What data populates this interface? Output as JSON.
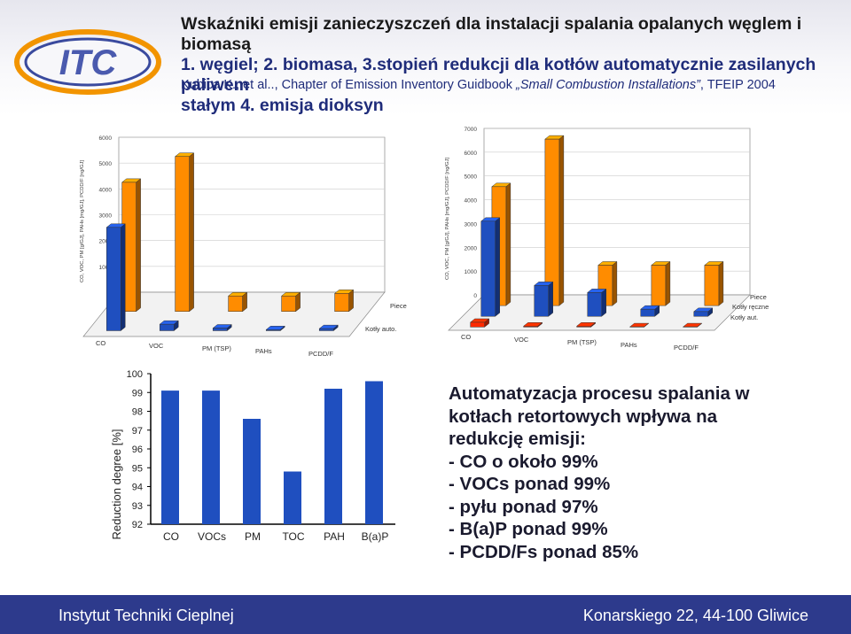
{
  "header": {
    "title_line1": "Wskaźniki emisji zanieczyszczeń dla instalacji spalania opalanych węglem i biomasą",
    "title_line2": "1. węgiel; 2. biomasa, 3.stopień redukcji dla kotłów automatycznie zasilanych paliwem",
    "title_line3": "stałym 4. emisja dioksyn",
    "source_prefix": "Kubica K., et al.., Chapter of Emission Inventory Guidbook ",
    "source_italic": "„Small Combustion Installations”",
    "source_suffix": ", TFEIP 2004"
  },
  "colors": {
    "accent": "#2d3a8c",
    "blue_bar": "#1f4fbf",
    "orange_bar": "#ff8c00",
    "red_bar": "#ff2a00"
  },
  "chart_data": [
    {
      "type": "bar",
      "title": "",
      "ylabel": "CO, VOC, PM [g/GJ], PAHs [mg/GJ], PCDD/F [ng/GJ]",
      "ylim": [
        0,
        6000
      ],
      "yticks": [
        "0",
        "1000",
        "2000",
        "3000",
        "4000",
        "5000",
        "6000"
      ],
      "categories": [
        "CO",
        "VOC",
        "PM (TSP)",
        "PAHs",
        "PCDD/F"
      ],
      "series": [
        {
          "name": "Piece",
          "values": [
            5000,
            6000,
            600,
            600,
            700
          ]
        },
        {
          "name": "Kotły auto.",
          "values": [
            4000,
            250,
            100,
            40,
            80
          ]
        }
      ]
    },
    {
      "type": "bar",
      "title": "",
      "ylabel": "CO, VOC, PM [g/GJ], PAHs [mg/GJ], PCDD/F [ng/GJ]",
      "ylim": [
        0,
        7000
      ],
      "yticks": [
        "0",
        "1000",
        "2000",
        "3000",
        "4000",
        "5000",
        "6000",
        "7000"
      ],
      "categories": [
        "CO",
        "VOC",
        "PM (TSP)",
        "PAHs",
        "PCDD/F"
      ],
      "series": [
        {
          "name": "Piece",
          "values": [
            5000,
            7000,
            1700,
            1700,
            1700
          ]
        },
        {
          "name": "Kotły ręczne",
          "values": [
            4000,
            1300,
            1000,
            300,
            200
          ]
        },
        {
          "name": "Kotły aut.",
          "values": [
            200,
            40,
            40,
            10,
            10
          ]
        }
      ]
    },
    {
      "type": "bar",
      "title": "",
      "ylabel": "Reduction degree [%]",
      "ylim": [
        92,
        100
      ],
      "yticks": [
        "92",
        "93",
        "94",
        "95",
        "96",
        "97",
        "98",
        "99",
        "100"
      ],
      "categories": [
        "CO",
        "VOCs",
        "PM",
        "TOC",
        "PAH",
        "B(a)P"
      ],
      "values": [
        99.1,
        99.1,
        97.6,
        94.8,
        99.2,
        99.6
      ]
    }
  ],
  "notes": {
    "line1": "Automatyzacja procesu spalania w",
    "line2": "kotłach retortowych wpływa na",
    "line3": "redukcję emisji:",
    "line4": "- CO o około 99%",
    "line5": "- VOCs ponad 99%",
    "line6": "- pyłu ponad 97%",
    "line7": "- B(a)P ponad 99%",
    "line8": "- PCDD/Fs ponad 85%"
  },
  "footer": {
    "left": "Instytut Techniki Cieplnej",
    "right": "Konarskiego 22, 44-100 Gliwice"
  }
}
